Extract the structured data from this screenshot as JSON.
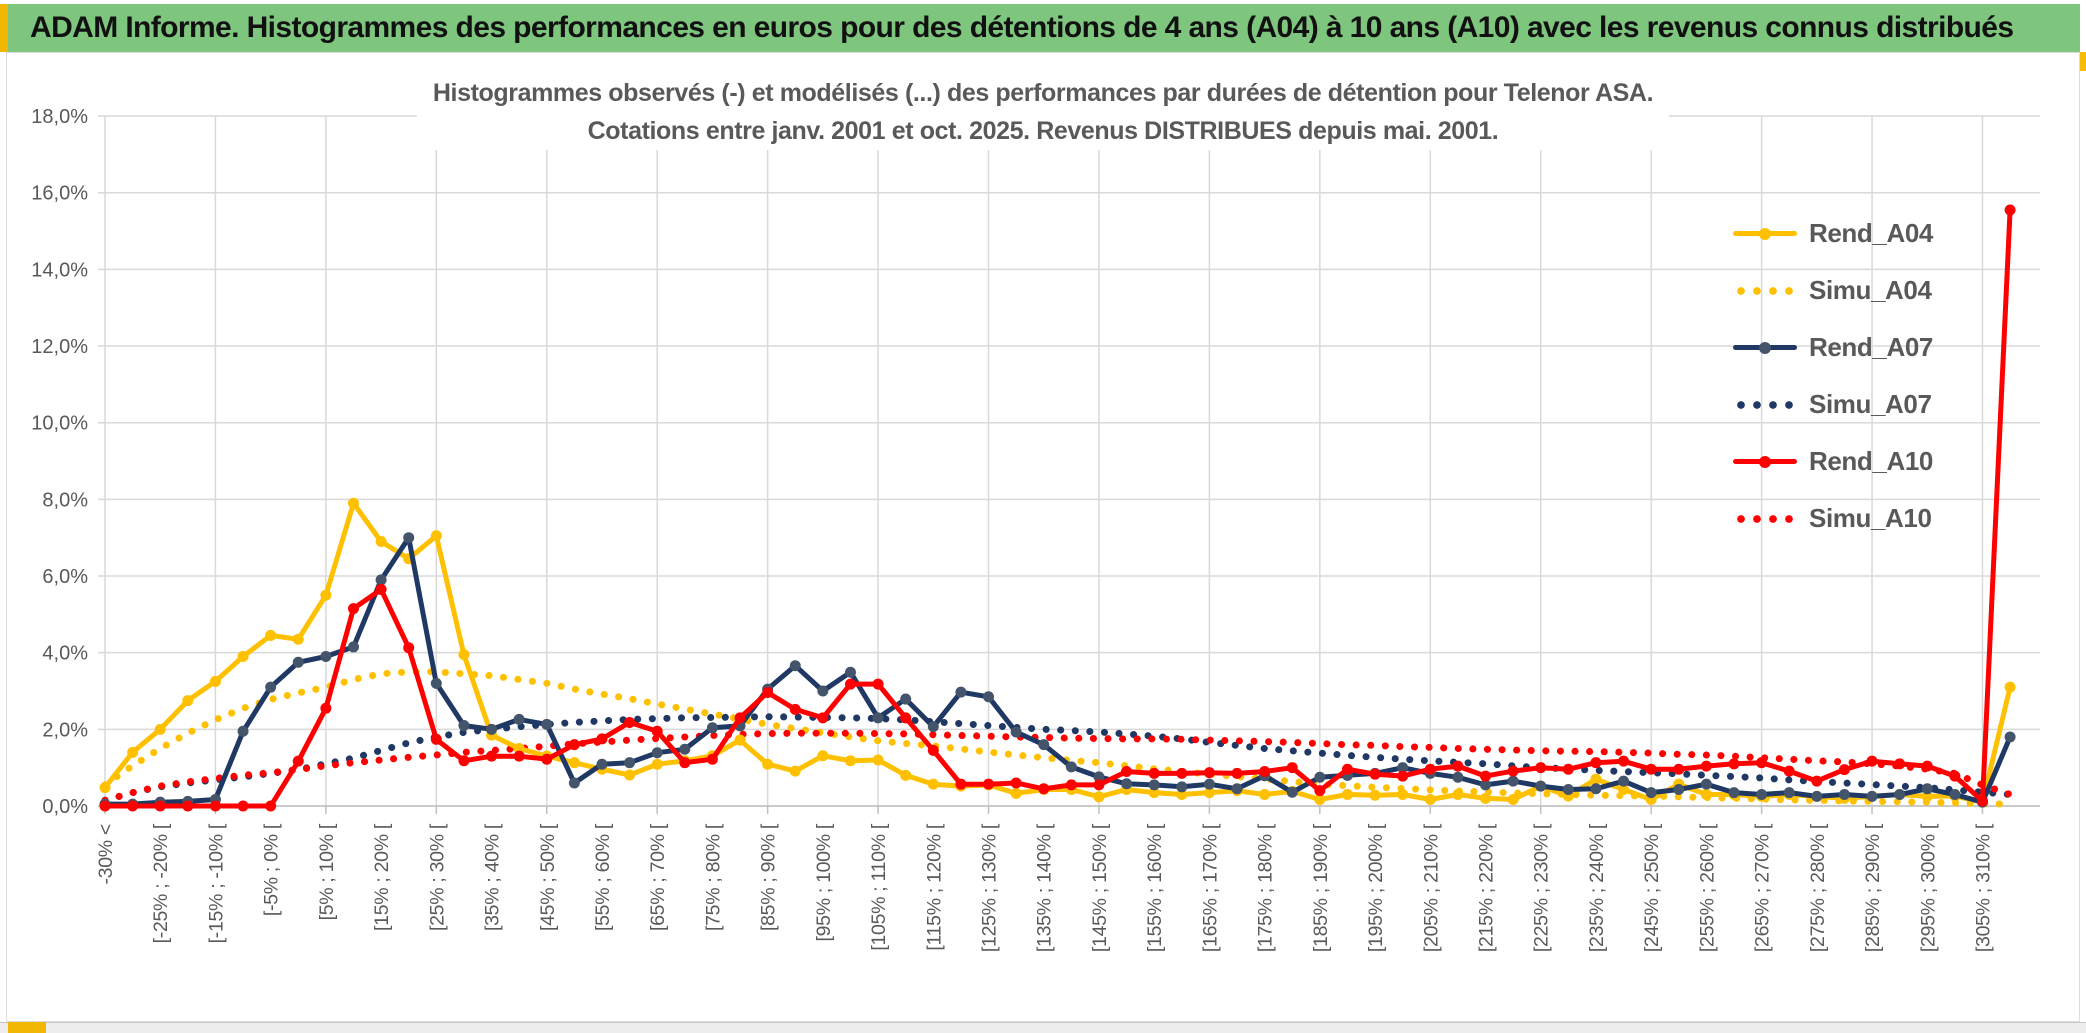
{
  "header": {
    "title": "ADAM Informe. Histogrammes des performances en euros pour des détentions de 4 ans (A04) à 10 ans (A10) avec les revenus connus distribués"
  },
  "colors": {
    "banner_green": "#7EC57E",
    "accent_gold": "#F2B705",
    "series_gold": "#FFC000",
    "series_navy": "#1F3864",
    "series_navy_marker": "#44546A",
    "series_red": "#FF0000",
    "grid": "#D9D9D9",
    "axis": "#BFBFBF",
    "text_gray": "#595959"
  },
  "chart_data": {
    "type": "line",
    "title_line1": "Histogrammes observés (-) et modélisés (...) des performances par durées de détention pour Telenor ASA.",
    "title_line2": "Cotations entre janv. 2001 et oct. 2025. Revenus DISTRIBUES depuis mai. 2001.",
    "grid": "on",
    "legend_position": "right-overlay",
    "y_axis": {
      "min": 0,
      "max": 18,
      "step": 2,
      "tick_labels": [
        "0,0%",
        "2,0%",
        "4,0%",
        "6,0%",
        "8,0%",
        "10,0%",
        "12,0%",
        "14,0%",
        "16,0%",
        "18,0%"
      ]
    },
    "x_axis": {
      "categories": [
        "-30% <",
        "",
        "[-25% ; -20% [",
        "",
        "[-15% ; -10% [",
        "",
        "[-5% ; 0% [",
        "",
        "[5% ; 10% [",
        "",
        "[15% ; 20% [",
        "",
        "[25% ; 30% [",
        "",
        "[35% ; 40% [",
        "",
        "[45% ; 50% [",
        "",
        "[55% ; 60% [",
        "",
        "[65% ; 70% [",
        "",
        "[75% ; 80% [",
        "",
        "[85% ; 90% [",
        "",
        "[95% ; 100% [",
        "",
        "[105% ; 110% [",
        "",
        "[115% ; 120% [",
        "",
        "[125% ; 130% [",
        "",
        "[135% ; 140% [",
        "",
        "[145% ; 150% [",
        "",
        "[155% ; 160% [",
        "",
        "[165% ; 170% [",
        "",
        "[175% ; 180% [",
        "",
        "[185% ; 190% [",
        "",
        "[195% ; 200% [",
        "",
        "[205% ; 210% [",
        "",
        "[215% ; 220% [",
        "",
        "[225% ; 230% [",
        "",
        "[235% ; 240% [",
        "",
        "[245% ; 250% [",
        "",
        "[255% ; 260% [",
        "",
        "[265% ; 270% [",
        "",
        "[275% ; 280% [",
        "",
        "[285% ; 290% [",
        "",
        "[295% ; 300% [",
        "",
        "[305% ; 310% [",
        ""
      ]
    },
    "series": [
      {
        "name": "Rend_A04",
        "style": "solid",
        "color": "#FFC000",
        "marker_color": "#FFC000",
        "values": [
          0.48,
          1.4,
          2.0,
          2.75,
          3.25,
          3.9,
          4.45,
          4.35,
          5.5,
          7.9,
          6.9,
          6.45,
          7.05,
          3.95,
          1.85,
          1.5,
          1.3,
          1.13,
          0.96,
          0.81,
          1.09,
          1.18,
          1.31,
          1.72,
          1.09,
          0.91,
          1.31,
          1.18,
          1.2,
          0.8,
          0.57,
          0.52,
          0.55,
          0.33,
          0.43,
          0.43,
          0.24,
          0.43,
          0.35,
          0.3,
          0.35,
          0.4,
          0.3,
          0.38,
          0.17,
          0.3,
          0.28,
          0.3,
          0.17,
          0.3,
          0.2,
          0.17,
          0.52,
          0.26,
          0.7,
          0.43,
          0.17,
          0.57,
          0.3,
          0.3,
          0.25,
          0.3,
          0.25,
          0.2,
          0.25,
          0.3,
          0.25,
          0.26,
          0.1,
          3.1
        ]
      },
      {
        "name": "Simu_A04",
        "style": "dotted",
        "color": "#FFC000",
        "values": [
          0.55,
          1.05,
          1.5,
          1.9,
          2.25,
          2.55,
          2.78,
          2.95,
          3.1,
          3.3,
          3.45,
          3.5,
          3.5,
          3.45,
          3.4,
          3.3,
          3.2,
          3.05,
          2.92,
          2.8,
          2.66,
          2.53,
          2.4,
          2.27,
          2.13,
          2.02,
          1.91,
          1.8,
          1.7,
          1.63,
          1.57,
          1.49,
          1.41,
          1.33,
          1.26,
          1.19,
          1.13,
          1.05,
          0.97,
          0.9,
          0.83,
          0.77,
          0.71,
          0.64,
          0.57,
          0.53,
          0.49,
          0.46,
          0.42,
          0.39,
          0.37,
          0.34,
          0.32,
          0.3,
          0.28,
          0.27,
          0.26,
          0.24,
          0.22,
          0.2,
          0.18,
          0.16,
          0.15,
          0.13,
          0.12,
          0.11,
          0.1,
          0.08,
          0.06,
          0.05
        ]
      },
      {
        "name": "Rend_A07",
        "style": "solid",
        "color": "#1F3864",
        "marker_color": "#44546A",
        "values": [
          0.05,
          0.05,
          0.1,
          0.12,
          0.17,
          1.95,
          3.1,
          3.75,
          3.9,
          4.15,
          5.9,
          7.0,
          3.2,
          2.1,
          2.0,
          2.26,
          2.13,
          0.6,
          1.09,
          1.13,
          1.39,
          1.48,
          2.04,
          2.09,
          3.05,
          3.66,
          3.0,
          3.49,
          2.3,
          2.79,
          2.07,
          2.97,
          2.85,
          1.93,
          1.6,
          1.02,
          0.76,
          0.58,
          0.55,
          0.5,
          0.57,
          0.45,
          0.79,
          0.36,
          0.75,
          0.8,
          0.85,
          1.0,
          0.85,
          0.75,
          0.55,
          0.65,
          0.52,
          0.43,
          0.45,
          0.65,
          0.35,
          0.43,
          0.57,
          0.35,
          0.3,
          0.35,
          0.25,
          0.3,
          0.25,
          0.3,
          0.45,
          0.3,
          0.1,
          1.8
        ]
      },
      {
        "name": "Simu_A07",
        "style": "dotted",
        "color": "#1F3864",
        "values": [
          0.15,
          0.35,
          0.5,
          0.6,
          0.68,
          0.76,
          0.85,
          0.95,
          1.1,
          1.25,
          1.45,
          1.65,
          1.8,
          1.92,
          2.0,
          2.07,
          2.13,
          2.18,
          2.22,
          2.26,
          2.28,
          2.3,
          2.31,
          2.32,
          2.33,
          2.32,
          2.31,
          2.3,
          2.28,
          2.25,
          2.2,
          2.15,
          2.1,
          2.05,
          2.0,
          1.97,
          1.93,
          1.88,
          1.82,
          1.75,
          1.66,
          1.58,
          1.5,
          1.44,
          1.38,
          1.32,
          1.27,
          1.22,
          1.18,
          1.14,
          1.1,
          1.05,
          1.0,
          0.97,
          0.93,
          0.9,
          0.87,
          0.84,
          0.8,
          0.77,
          0.73,
          0.68,
          0.64,
          0.6,
          0.56,
          0.52,
          0.48,
          0.42,
          0.36,
          0.3
        ]
      },
      {
        "name": "Rend_A10",
        "style": "solid",
        "color": "#FF0000",
        "marker_color": "#FF0000",
        "values": [
          0,
          0,
          0,
          0,
          0,
          0,
          0,
          1.17,
          2.55,
          5.15,
          5.65,
          4.13,
          1.74,
          1.18,
          1.3,
          1.3,
          1.22,
          1.6,
          1.75,
          2.18,
          1.95,
          1.13,
          1.22,
          2.3,
          2.96,
          2.52,
          2.3,
          3.18,
          3.18,
          2.3,
          1.45,
          0.57,
          0.57,
          0.6,
          0.45,
          0.55,
          0.55,
          0.9,
          0.85,
          0.85,
          0.87,
          0.85,
          0.9,
          1.0,
          0.4,
          0.96,
          0.83,
          0.78,
          0.96,
          1.04,
          0.78,
          0.91,
          1.0,
          0.96,
          1.13,
          1.17,
          0.96,
          0.96,
          1.04,
          1.1,
          1.13,
          0.91,
          0.65,
          0.95,
          1.17,
          1.1,
          1.04,
          0.78,
          0.13,
          15.55
        ]
      },
      {
        "name": "Simu_A10",
        "style": "dotted",
        "color": "#FF0000",
        "values": [
          0.15,
          0.35,
          0.52,
          0.63,
          0.72,
          0.8,
          0.87,
          0.95,
          1.05,
          1.13,
          1.2,
          1.27,
          1.33,
          1.4,
          1.45,
          1.5,
          1.56,
          1.62,
          1.67,
          1.72,
          1.76,
          1.8,
          1.84,
          1.87,
          1.89,
          1.9,
          1.9,
          1.9,
          1.89,
          1.88,
          1.86,
          1.84,
          1.82,
          1.8,
          1.79,
          1.77,
          1.76,
          1.75,
          1.75,
          1.74,
          1.72,
          1.7,
          1.68,
          1.66,
          1.63,
          1.6,
          1.58,
          1.55,
          1.53,
          1.5,
          1.48,
          1.46,
          1.44,
          1.43,
          1.42,
          1.4,
          1.38,
          1.35,
          1.33,
          1.3,
          1.26,
          1.22,
          1.18,
          1.15,
          1.1,
          1.04,
          0.96,
          0.85,
          0.55,
          0.3
        ]
      }
    ]
  },
  "legend": {
    "entries": [
      {
        "label": "Rend_A04"
      },
      {
        "label": "Simu_A04"
      },
      {
        "label": "Rend_A07"
      },
      {
        "label": "Simu_A07"
      },
      {
        "label": "Rend_A10"
      },
      {
        "label": "Simu_A10"
      }
    ]
  }
}
